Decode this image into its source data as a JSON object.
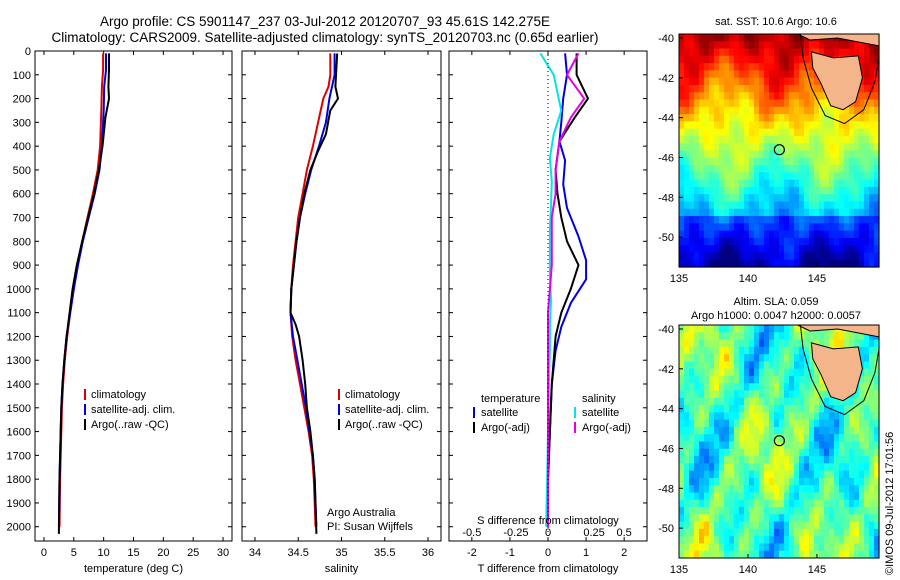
{
  "title_line1": "Argo profile: CS 5901147_237 03-Jul-2012 20120707_93 45.61S 142.275E",
  "title_line2": "Climatology: CARS2009. Satellite-adjusted climatology: synTS_20120703.nc (0.65d earlier)",
  "timestamp": "©IMOS 09-Jul-2012 17:01:56",
  "colors": {
    "climatology": "#dd0000",
    "satellite": "#0000dd",
    "argo": "#000000",
    "cyan": "#00e5e5",
    "magenta": "#e600e6"
  },
  "chart_data": [
    {
      "type": "line",
      "id": "temperature",
      "xlabel": "temperature (deg C)",
      "xticks": [
        0,
        5,
        10,
        15,
        20,
        25,
        30
      ],
      "yticks": [
        0,
        100,
        200,
        300,
        400,
        500,
        600,
        700,
        800,
        900,
        1000,
        1100,
        1200,
        1300,
        1400,
        1500,
        1600,
        1700,
        1800,
        1900,
        2000
      ],
      "xlim": [
        -1.5,
        31.5
      ],
      "ylim": [
        2060,
        0
      ],
      "legend": [
        "climatology",
        "satellite-adj. clim.",
        "Argo(..raw -QC)"
      ],
      "legend_position": "bottom-right",
      "series": [
        {
          "name": "climatology",
          "color": "#dd0000",
          "points": [
            [
              9.9,
              10
            ],
            [
              9.9,
              80
            ],
            [
              9.7,
              150
            ],
            [
              9.6,
              250
            ],
            [
              9.4,
              400
            ],
            [
              9.0,
              500
            ],
            [
              8.2,
              600
            ],
            [
              7.3,
              700
            ],
            [
              6.4,
              800
            ],
            [
              5.6,
              900
            ],
            [
              5.0,
              1000
            ],
            [
              4.4,
              1100
            ],
            [
              3.9,
              1200
            ],
            [
              3.5,
              1300
            ],
            [
              3.2,
              1400
            ],
            [
              3.0,
              1500
            ],
            [
              2.9,
              1600
            ],
            [
              2.8,
              1700
            ],
            [
              2.7,
              1800
            ],
            [
              2.65,
              1900
            ],
            [
              2.6,
              2000
            ]
          ]
        },
        {
          "name": "satellite-adj. clim.",
          "color": "#0000dd",
          "points": [
            [
              10.4,
              10
            ],
            [
              10.4,
              80
            ],
            [
              10.1,
              150
            ],
            [
              10.0,
              250
            ],
            [
              9.7,
              400
            ],
            [
              9.3,
              500
            ],
            [
              8.5,
              600
            ],
            [
              7.5,
              700
            ],
            [
              6.5,
              800
            ],
            [
              5.7,
              900
            ],
            [
              5.0,
              1000
            ],
            [
              4.4,
              1100
            ],
            [
              3.8,
              1200
            ],
            [
              3.4,
              1300
            ],
            [
              3.1,
              1400
            ],
            [
              2.9,
              1500
            ],
            [
              2.8,
              1600
            ],
            [
              2.7,
              1700
            ],
            [
              2.6,
              1800
            ],
            [
              2.55,
              1900
            ],
            [
              2.5,
              2000
            ]
          ]
        },
        {
          "name": "Argo(..raw -QC)",
          "color": "#000000",
          "points": [
            [
              10.9,
              10
            ],
            [
              10.9,
              80
            ],
            [
              10.8,
              150
            ],
            [
              10.9,
              200
            ],
            [
              10.3,
              280
            ],
            [
              9.8,
              400
            ],
            [
              9.2,
              500
            ],
            [
              8.4,
              600
            ],
            [
              7.4,
              700
            ],
            [
              6.4,
              800
            ],
            [
              5.5,
              900
            ],
            [
              4.8,
              1000
            ],
            [
              4.3,
              1100
            ],
            [
              3.8,
              1200
            ],
            [
              3.4,
              1300
            ],
            [
              3.1,
              1400
            ],
            [
              2.9,
              1500
            ],
            [
              2.8,
              1600
            ],
            [
              2.7,
              1700
            ],
            [
              2.6,
              1800
            ],
            [
              2.55,
              1900
            ],
            [
              2.5,
              2030
            ]
          ]
        }
      ]
    },
    {
      "type": "line",
      "id": "salinity",
      "xlabel": "salinity",
      "xticks": [
        34,
        34.5,
        35,
        35.5,
        36
      ],
      "xlim": [
        33.85,
        36.15
      ],
      "ylim": [
        2060,
        0
      ],
      "legend": [
        "climatology",
        "satellite-adj. clim.",
        "Argo(..raw -QC)"
      ],
      "legend_position": "bottom-right",
      "annotation": [
        "Argo Australia",
        "PI: Susan Wijffels"
      ],
      "series": [
        {
          "name": "climatology",
          "color": "#dd0000",
          "points": [
            [
              34.87,
              10
            ],
            [
              34.87,
              100
            ],
            [
              34.85,
              150
            ],
            [
              34.79,
              200
            ],
            [
              34.73,
              300
            ],
            [
              34.67,
              400
            ],
            [
              34.6,
              500
            ],
            [
              34.55,
              600
            ],
            [
              34.5,
              700
            ],
            [
              34.47,
              800
            ],
            [
              34.44,
              900
            ],
            [
              34.42,
              1000
            ],
            [
              34.41,
              1100
            ],
            [
              34.43,
              1200
            ],
            [
              34.47,
              1300
            ],
            [
              34.52,
              1400
            ],
            [
              34.57,
              1500
            ],
            [
              34.62,
              1600
            ],
            [
              34.66,
              1700
            ],
            [
              34.68,
              1800
            ],
            [
              34.69,
              1900
            ],
            [
              34.7,
              2000
            ]
          ]
        },
        {
          "name": "satellite-adj. clim.",
          "color": "#0000dd",
          "points": [
            [
              34.92,
              10
            ],
            [
              34.92,
              100
            ],
            [
              34.89,
              150
            ],
            [
              34.86,
              200
            ],
            [
              34.82,
              300
            ],
            [
              34.74,
              400
            ],
            [
              34.65,
              500
            ],
            [
              34.58,
              600
            ],
            [
              34.52,
              700
            ],
            [
              34.48,
              800
            ],
            [
              34.45,
              900
            ],
            [
              34.42,
              1000
            ],
            [
              34.41,
              1100
            ],
            [
              34.44,
              1200
            ],
            [
              34.49,
              1300
            ],
            [
              34.54,
              1400
            ],
            [
              34.59,
              1500
            ],
            [
              34.63,
              1600
            ],
            [
              34.67,
              1700
            ],
            [
              34.69,
              1800
            ],
            [
              34.7,
              1900
            ],
            [
              34.71,
              2000
            ]
          ]
        },
        {
          "name": "Argo(..raw -QC)",
          "color": "#000000",
          "points": [
            [
              34.95,
              10
            ],
            [
              34.94,
              80
            ],
            [
              34.93,
              150
            ],
            [
              34.96,
              200
            ],
            [
              34.87,
              250
            ],
            [
              34.82,
              350
            ],
            [
              34.73,
              420
            ],
            [
              34.64,
              500
            ],
            [
              34.57,
              600
            ],
            [
              34.52,
              700
            ],
            [
              34.48,
              800
            ],
            [
              34.45,
              900
            ],
            [
              34.42,
              1000
            ],
            [
              34.41,
              1100
            ],
            [
              34.47,
              1150
            ],
            [
              34.51,
              1200
            ],
            [
              34.55,
              1300
            ],
            [
              34.58,
              1400
            ],
            [
              34.6,
              1500
            ],
            [
              34.64,
              1600
            ],
            [
              34.67,
              1700
            ],
            [
              34.69,
              1800
            ],
            [
              34.7,
              1900
            ],
            [
              34.71,
              2030
            ]
          ]
        }
      ]
    },
    {
      "type": "line",
      "id": "differences",
      "xlabel": "T difference from climatology",
      "xlabel_top": "S difference from climatology",
      "xticks": [
        -2,
        -1,
        0,
        1,
        2
      ],
      "xticks_s": [
        "-0.5",
        "-0.25",
        "0",
        "0.25",
        "0.5"
      ],
      "xlim": [
        -2.6,
        2.6
      ],
      "ylim": [
        2060,
        0
      ],
      "legend_temperature": {
        "title": "temperature",
        "entries": [
          "satellite",
          "Argo(-adj)"
        ]
      },
      "legend_salinity": {
        "title": "salinity",
        "entries": [
          "satellite",
          "Argo(-adj)"
        ]
      },
      "series": [
        {
          "name": "temperature satellite",
          "color": "#0000dd",
          "points": [
            [
              0.45,
              10
            ],
            [
              0.5,
              100
            ],
            [
              0.4,
              200
            ],
            [
              0.35,
              300
            ],
            [
              0.3,
              380
            ],
            [
              0.45,
              460
            ],
            [
              0.4,
              560
            ],
            [
              0.5,
              660
            ],
            [
              0.8,
              780
            ],
            [
              1.0,
              880
            ],
            [
              1.0,
              960
            ],
            [
              0.6,
              1060
            ],
            [
              0.35,
              1160
            ],
            [
              0.2,
              1260
            ],
            [
              0.1,
              1400
            ],
            [
              0.05,
              1600
            ],
            [
              0,
              1800
            ],
            [
              0,
              2000
            ]
          ]
        },
        {
          "name": "temperature Argo(-adj)",
          "color": "#000000",
          "points": [
            [
              0.75,
              10
            ],
            [
              0.75,
              100
            ],
            [
              1.05,
              200
            ],
            [
              0.7,
              280
            ],
            [
              0.3,
              380
            ],
            [
              0.2,
              500
            ],
            [
              0.25,
              600
            ],
            [
              0.35,
              700
            ],
            [
              0.5,
              800
            ],
            [
              0.8,
              900
            ],
            [
              0.6,
              1000
            ],
            [
              0.35,
              1100
            ],
            [
              0.2,
              1200
            ],
            [
              0.15,
              1300
            ],
            [
              0.1,
              1400
            ],
            [
              0.05,
              1600
            ],
            [
              0,
              1800
            ],
            [
              0,
              2000
            ]
          ]
        },
        {
          "name": "salinity satellite",
          "color": "#00e5e5",
          "points": [
            [
              -0.2,
              10
            ],
            [
              0.15,
              100
            ],
            [
              0.28,
              200
            ],
            [
              0.35,
              250
            ],
            [
              0.15,
              350
            ],
            [
              0.05,
              450
            ],
            [
              0.1,
              550
            ],
            [
              0.08,
              650
            ],
            [
              0.05,
              750
            ],
            [
              0.05,
              850
            ],
            [
              0.05,
              950
            ],
            [
              0.08,
              1050
            ],
            [
              0.05,
              1150
            ],
            [
              0.05,
              1250
            ],
            [
              0.02,
              1400
            ],
            [
              0,
              1600
            ],
            [
              -0.02,
              1800
            ],
            [
              -0.05,
              2000
            ]
          ]
        },
        {
          "name": "salinity Argo(-adj)",
          "color": "#e600e6",
          "points": [
            [
              0.8,
              10
            ],
            [
              0.5,
              100
            ],
            [
              0.95,
              200
            ],
            [
              0.6,
              280
            ],
            [
              0.3,
              380
            ],
            [
              0.2,
              500
            ],
            [
              0.2,
              600
            ],
            [
              0.1,
              700
            ],
            [
              0.1,
              800
            ],
            [
              0.1,
              900
            ],
            [
              0.05,
              1000
            ],
            [
              0,
              1100
            ],
            [
              0,
              1200
            ],
            [
              0,
              1300
            ],
            [
              0,
              1500
            ],
            [
              0,
              1700
            ],
            [
              0,
              2000
            ]
          ]
        }
      ]
    },
    {
      "type": "heatmap",
      "id": "sst-map",
      "title": "sat. SST: 10.6  Argo: 10.6",
      "xticks": [
        135,
        140,
        145
      ],
      "yticks": [
        -40,
        -42,
        -44,
        -46,
        -48,
        -50
      ],
      "xlim": [
        135,
        149.5
      ],
      "ylim": [
        -51.5,
        -39.8
      ],
      "marker": [
        142.275,
        -45.61
      ]
    },
    {
      "type": "heatmap",
      "id": "sla-map",
      "title_line1": "Altim. SLA: 0.059",
      "title_line2": "Argo h1000: 0.0047  h2000: 0.0057",
      "xticks": [
        135,
        140,
        145
      ],
      "yticks": [
        -40,
        -42,
        -44,
        -46,
        -48,
        -50
      ],
      "xlim": [
        135,
        149.5
      ],
      "ylim": [
        -51.5,
        -39.8
      ],
      "marker": [
        142.275,
        -45.61
      ]
    }
  ]
}
